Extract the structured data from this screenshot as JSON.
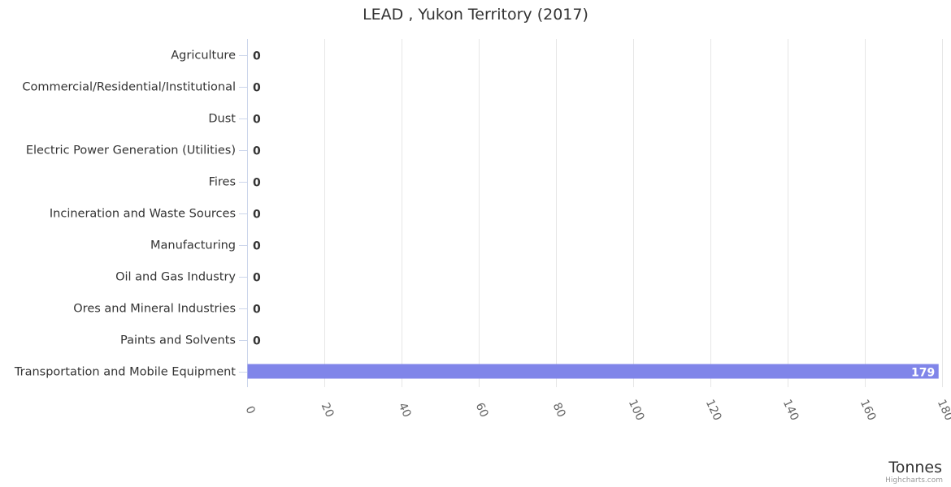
{
  "chart_data": {
    "type": "bar",
    "orientation": "horizontal",
    "title": "LEAD , Yukon Territory (2017)",
    "categories": [
      "Agriculture",
      "Commercial/Residential/Institutional",
      "Dust",
      "Electric Power Generation (Utilities)",
      "Fires",
      "Incineration and Waste Sources",
      "Manufacturing",
      "Oil and Gas Industry",
      "Ores and Mineral Industries",
      "Paints and Solvents",
      "Transportation and Mobile Equipment"
    ],
    "values": [
      0,
      0,
      0,
      0,
      0,
      0,
      0,
      0,
      0,
      0,
      179
    ],
    "value_labels": [
      "0",
      "0",
      "0",
      "0",
      "0",
      "0",
      "0",
      "0",
      "0",
      "0",
      "179"
    ],
    "ticks": [
      0,
      20,
      40,
      60,
      80,
      100,
      120,
      140,
      160,
      180
    ],
    "tick_labels": [
      "0",
      "20",
      "40",
      "60",
      "80",
      "100",
      "120",
      "140",
      "160",
      "180"
    ],
    "xlim": [
      0,
      180
    ],
    "xlabel": "Tonnes",
    "ylabel": "",
    "grid": true,
    "bar_color": "#8085e9"
  },
  "credits": "Highcharts.com"
}
